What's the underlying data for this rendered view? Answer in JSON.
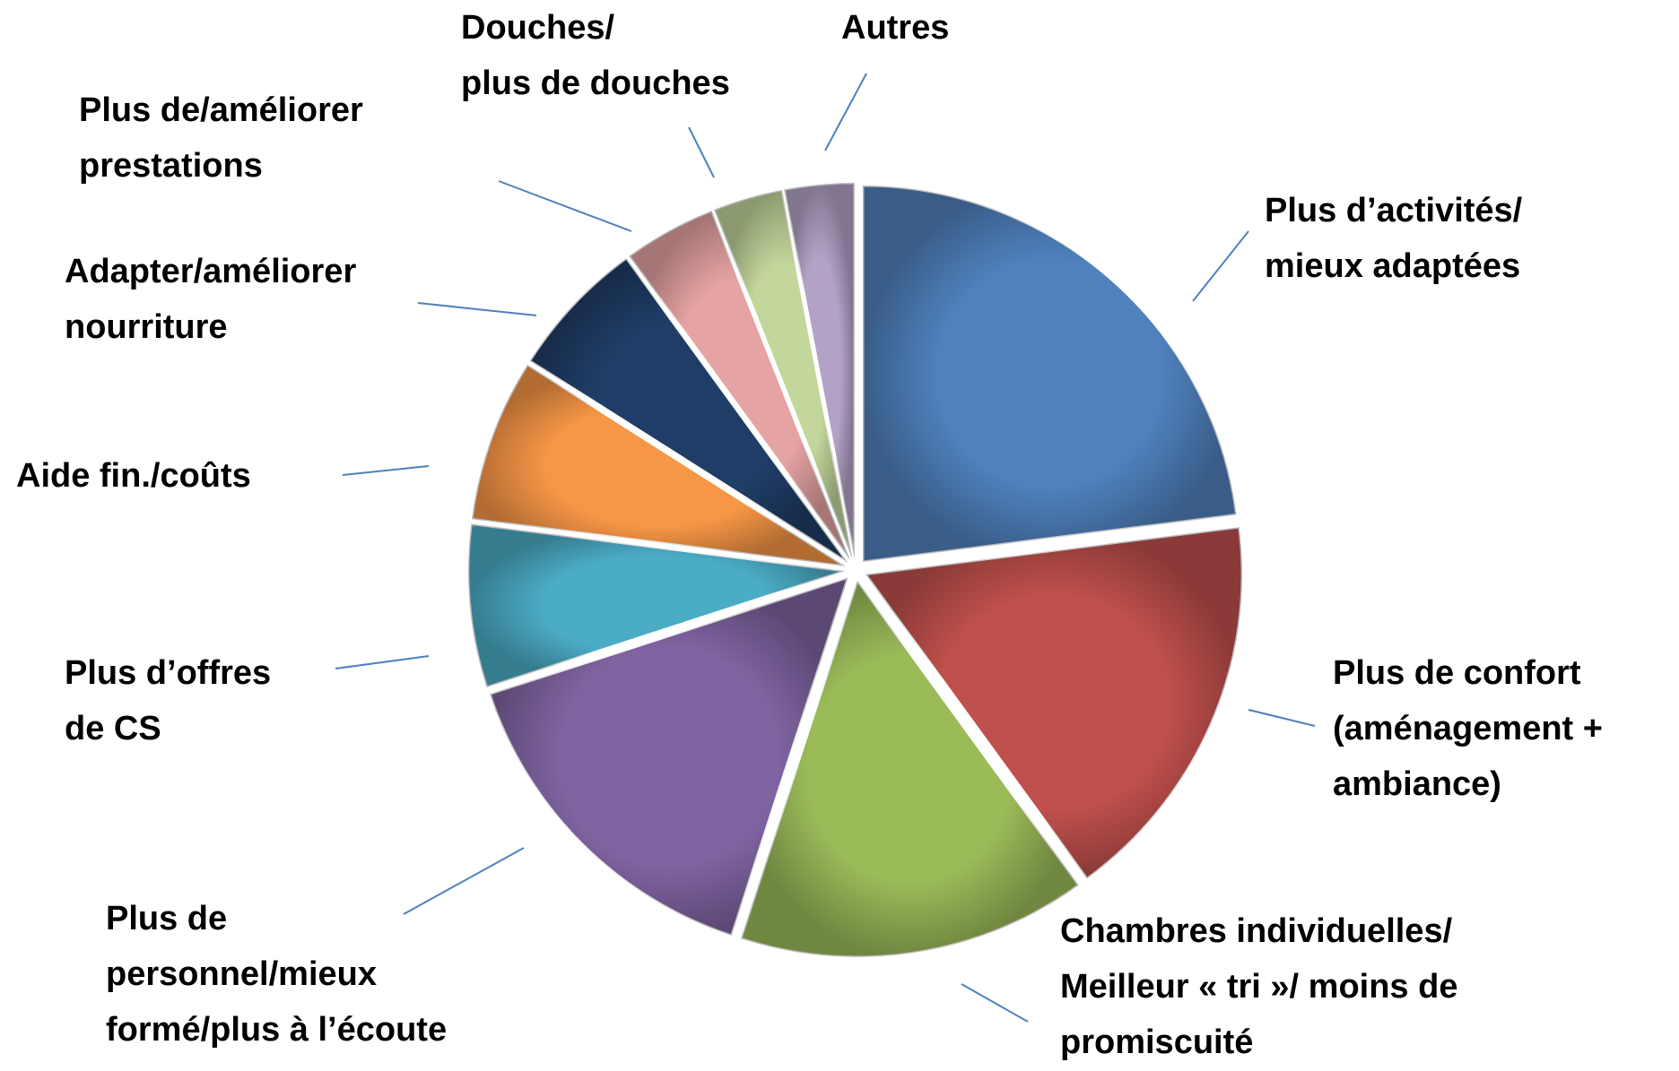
{
  "chart_data": {
    "type": "pie",
    "categories": [
      "Plus d’activités/\nmieux adaptées",
      "Plus de confort\n(aménagement +\nambiance)",
      "Chambres individuelles/\nMeilleur « tri »/ moins de\npromiscuité",
      "Plus de\npersonnel/mieux\nformé/plus à l’écoute",
      "Plus d’offres\nde CS",
      "Aide fin./coûts",
      "Adapter/améliorer\nnourriture",
      "Plus de/améliorer\nprestations",
      "Douches/\nplus de douches",
      "Autres"
    ],
    "values": [
      23,
      17,
      15,
      15,
      7,
      7,
      6,
      4,
      3,
      3
    ],
    "colors": [
      "#4f81bd",
      "#c0504d",
      "#9bbb59",
      "#8064a2",
      "#4bacc6",
      "#f79646",
      "#1f3d66",
      "#e6a3a3",
      "#c3d69b",
      "#b3a2c7"
    ]
  }
}
